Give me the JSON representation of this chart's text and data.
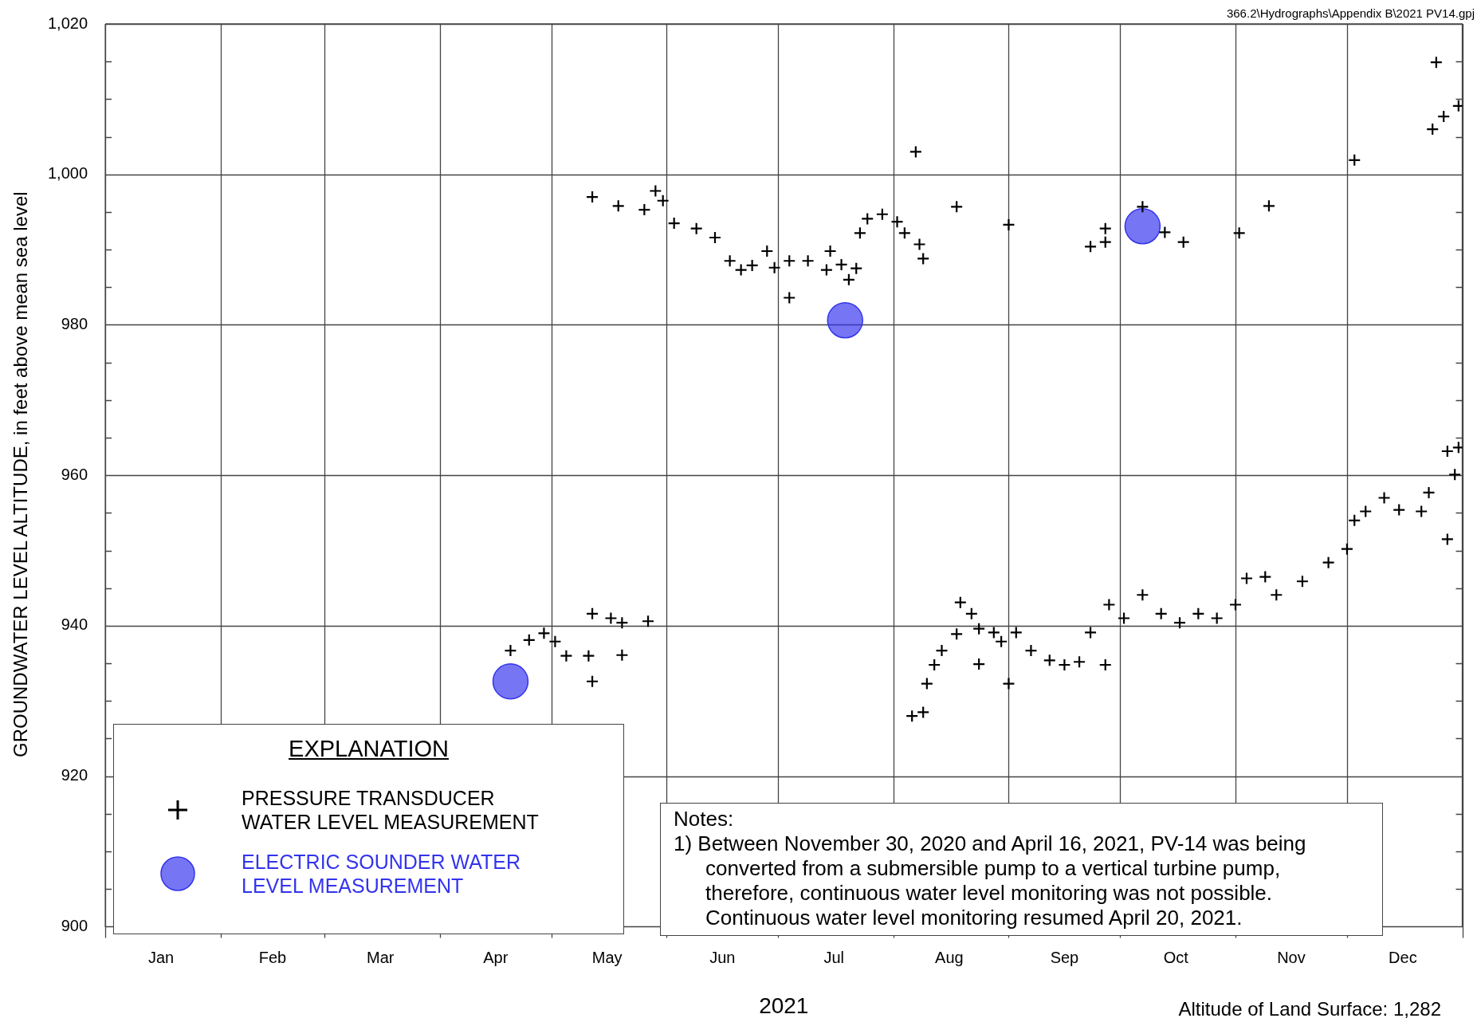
{
  "chart_data": {
    "type": "scatter",
    "xlabel": "2021",
    "ylabel": "GROUNDWATER LEVEL ALTITUDE, in feet above mean sea level",
    "legend_title": "EXPLANATION",
    "legend": "bottom left",
    "grid": true,
    "annotations": [
      "366.2\\Hydrographs\\Appendix B\\2021 PV14.gpj",
      "Altitude of Land Surface: 1,282",
      "Notes:",
      "1)  Between November 30, 2020 and April 16, 2021, PV-14 was being converted from a submersible pump to a vertical turbine pump, therefore, continuous water level monitoring was not possible. Continuous water level monitoring resumed April 20, 2021."
    ],
    "xlim": [
      "2021-01-01",
      "2022-01-01"
    ],
    "xticks": [
      {
        "value": "2021-01-01",
        "label": null
      },
      {
        "value": "2021-01-16",
        "label": "Jan"
      },
      {
        "value": "2021-02-01",
        "label": null
      },
      {
        "value": "2021-02-15",
        "label": "Feb"
      },
      {
        "value": "2021-03-01",
        "label": null
      },
      {
        "value": "2021-03-16",
        "label": "Mar"
      },
      {
        "value": "2021-04-01",
        "label": null
      },
      {
        "value": "2021-04-16",
        "label": "Apr"
      },
      {
        "value": "2021-05-01",
        "label": null
      },
      {
        "value": "2021-05-16",
        "label": "May"
      },
      {
        "value": "2021-06-01",
        "label": null
      },
      {
        "value": "2021-06-16",
        "label": "Jun"
      },
      {
        "value": "2021-07-01",
        "label": null
      },
      {
        "value": "2021-07-16",
        "label": "Jul"
      },
      {
        "value": "2021-08-01",
        "label": null
      },
      {
        "value": "2021-08-16",
        "label": "Aug"
      },
      {
        "value": "2021-09-01",
        "label": null
      },
      {
        "value": "2021-09-16",
        "label": "Sep"
      },
      {
        "value": "2021-10-01",
        "label": null
      },
      {
        "value": "2021-10-16",
        "label": "Oct"
      },
      {
        "value": "2021-11-01",
        "label": null
      },
      {
        "value": "2021-11-16",
        "label": "Nov"
      },
      {
        "value": "2021-12-01",
        "label": null
      },
      {
        "value": "2021-12-16",
        "label": "Dec"
      },
      {
        "value": "2022-01-01",
        "label": null
      }
    ],
    "ylim": [
      900,
      1020
    ],
    "yticks": [
      {
        "value": 900,
        "label": "900"
      },
      {
        "value": 905,
        "label": null
      },
      {
        "value": 910,
        "label": null
      },
      {
        "value": 915,
        "label": null
      },
      {
        "value": 920,
        "label": "920"
      },
      {
        "value": 925,
        "label": null
      },
      {
        "value": 930,
        "label": null
      },
      {
        "value": 935,
        "label": null
      },
      {
        "value": 940,
        "label": "940"
      },
      {
        "value": 945,
        "label": null
      },
      {
        "value": 950,
        "label": null
      },
      {
        "value": 955,
        "label": null
      },
      {
        "value": 960,
        "label": "960"
      },
      {
        "value": 965,
        "label": null
      },
      {
        "value": 970,
        "label": null
      },
      {
        "value": 975,
        "label": null
      },
      {
        "value": 980,
        "label": "980"
      },
      {
        "value": 985,
        "label": null
      },
      {
        "value": 990,
        "label": null
      },
      {
        "value": 995,
        "label": null
      },
      {
        "value": 1000,
        "label": "1,000"
      },
      {
        "value": 1005,
        "label": null
      },
      {
        "value": 1010,
        "label": null
      },
      {
        "value": 1015,
        "label": null
      },
      {
        "value": 1020,
        "label": "1,020"
      }
    ],
    "series": [
      {
        "name": "PRESSURE TRANSDUCER WATER LEVEL MEASUREMENT",
        "color": "#000000",
        "marker": "cross",
        "x": [
          "2021-04-20",
          "2021-04-25",
          "2021-04-29",
          "2021-05-02",
          "2021-05-05",
          "2021-05-11",
          "2021-05-12",
          "2021-05-12",
          "2021-05-12",
          "2021-05-17",
          "2021-05-19",
          "2021-05-20",
          "2021-05-20",
          "2021-05-26",
          "2021-05-27",
          "2021-05-29",
          "2021-05-31",
          "2021-06-03",
          "2021-06-09",
          "2021-06-14",
          "2021-06-18",
          "2021-06-21",
          "2021-06-24",
          "2021-06-28",
          "2021-06-30",
          "2021-07-04",
          "2021-07-04",
          "2021-07-09",
          "2021-07-14",
          "2021-07-15",
          "2021-07-18",
          "2021-07-20",
          "2021-07-22",
          "2021-07-23",
          "2021-07-25",
          "2021-07-29",
          "2021-08-02",
          "2021-08-04",
          "2021-08-06",
          "2021-08-07",
          "2021-08-08",
          "2021-08-09",
          "2021-08-09",
          "2021-08-10",
          "2021-08-12",
          "2021-08-14",
          "2021-08-18",
          "2021-08-18",
          "2021-08-19",
          "2021-08-22",
          "2021-08-24",
          "2021-08-24",
          "2021-08-28",
          "2021-08-30",
          "2021-09-01",
          "2021-09-01",
          "2021-09-03",
          "2021-09-07",
          "2021-09-12",
          "2021-09-16",
          "2021-09-20",
          "2021-09-23",
          "2021-09-23",
          "2021-09-27",
          "2021-09-27",
          "2021-09-27",
          "2021-09-28",
          "2021-10-02",
          "2021-10-07",
          "2021-10-07",
          "2021-10-12",
          "2021-10-13",
          "2021-10-17",
          "2021-10-18",
          "2021-10-22",
          "2021-10-27",
          "2021-11-01",
          "2021-11-02",
          "2021-11-04",
          "2021-11-09",
          "2021-11-10",
          "2021-11-12",
          "2021-11-19",
          "2021-11-26",
          "2021-12-01",
          "2021-12-03",
          "2021-12-03",
          "2021-12-06",
          "2021-12-11",
          "2021-12-15",
          "2021-12-21",
          "2021-12-23",
          "2021-12-24",
          "2021-12-25",
          "2021-12-27",
          "2021-12-28",
          "2021-12-28",
          "2021-12-30",
          "2021-12-31",
          "2021-12-31"
        ],
        "values": [
          936.7,
          938.1,
          939.0,
          937.9,
          936.0,
          936.0,
          932.6,
          941.6,
          997.0,
          941.0,
          995.8,
          940.4,
          936.1,
          995.3,
          940.6,
          997.8,
          996.5,
          993.5,
          992.8,
          991.6,
          988.5,
          987.3,
          987.9,
          989.8,
          987.6,
          988.5,
          983.6,
          988.5,
          987.3,
          989.8,
          988.0,
          986.0,
          987.5,
          992.2,
          994.1,
          994.7,
          993.7,
          992.2,
          928.0,
          1003.0,
          990.7,
          988.8,
          928.5,
          932.3,
          934.8,
          936.7,
          938.9,
          995.7,
          943.1,
          941.6,
          939.6,
          934.9,
          939.1,
          937.9,
          932.3,
          993.3,
          939.1,
          936.7,
          935.4,
          934.8,
          935.2,
          939.1,
          990.4,
          934.8,
          992.8,
          991.0,
          942.8,
          941.0,
          944.1,
          995.7,
          941.6,
          992.3,
          940.4,
          991.0,
          941.6,
          941.0,
          942.8,
          992.2,
          946.3,
          946.5,
          995.8,
          944.1,
          945.9,
          948.4,
          950.2,
          954.0,
          1001.9,
          955.2,
          957.0,
          955.4,
          955.2,
          957.7,
          1006.0,
          1014.9,
          1007.7,
          951.5,
          963.2,
          960.1,
          963.7,
          1009.1
        ]
      },
      {
        "name": "ELECTRIC SOUNDER WATER LEVEL MEASUREMENT",
        "color": "#3333ee",
        "marker": "circle",
        "x": [
          "2021-04-20",
          "2021-07-19",
          "2021-10-07"
        ],
        "values": [
          932.6,
          980.6,
          993.1
        ]
      }
    ]
  }
}
